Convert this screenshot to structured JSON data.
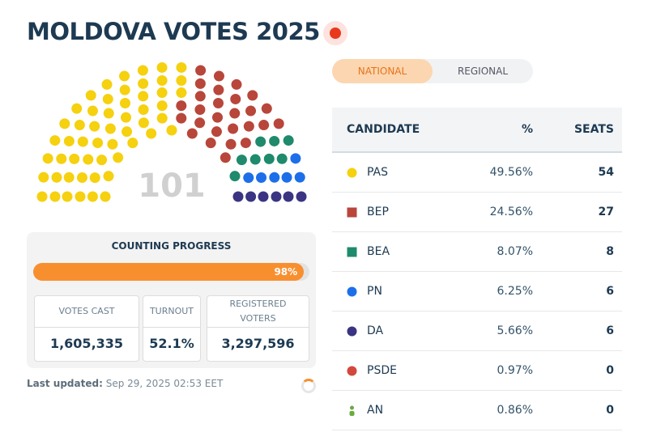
{
  "header": {
    "title": "MOLDOVA VOTES 2025"
  },
  "tabs": {
    "items": [
      "NATIONAL",
      "REGIONAL"
    ],
    "active": 0
  },
  "hemicycle": {
    "total": "101"
  },
  "progress": {
    "title": "COUNTING PROGRESS",
    "percent": 98,
    "label": "98%"
  },
  "stats": [
    {
      "label": "VOTES CAST",
      "value": "1,605,335"
    },
    {
      "label": "TURNOUT",
      "value": "52.1%"
    },
    {
      "label": "REGISTERED VOTERS",
      "value": "3,297,596"
    }
  ],
  "last_updated": {
    "label": "Last updated:",
    "time": "Sep 29, 2025 02:53 EET"
  },
  "table": {
    "columns": [
      "CANDIDATE",
      "%",
      "SEATS"
    ],
    "rows": [
      {
        "name": "PAS",
        "percent": "49.56%",
        "seats": 54,
        "color": "#f5d10f",
        "marker": "circle"
      },
      {
        "name": "BEP",
        "percent": "24.56%",
        "seats": 27,
        "color": "#b8463a",
        "marker": "square"
      },
      {
        "name": "BEA",
        "percent": "8.07%",
        "seats": 8,
        "color": "#1f8a6c",
        "marker": "square"
      },
      {
        "name": "PN",
        "percent": "6.25%",
        "seats": 6,
        "color": "#1d6fe9",
        "marker": "circle"
      },
      {
        "name": "DA",
        "percent": "5.66%",
        "seats": 6,
        "color": "#3a3482",
        "marker": "circle"
      },
      {
        "name": "PSDE",
        "percent": "0.97%",
        "seats": 0,
        "color": "#d2483d",
        "marker": "circle"
      },
      {
        "name": "AN",
        "percent": "0.86%",
        "seats": 0,
        "color": "#6aab3e",
        "marker": "person"
      }
    ]
  }
}
